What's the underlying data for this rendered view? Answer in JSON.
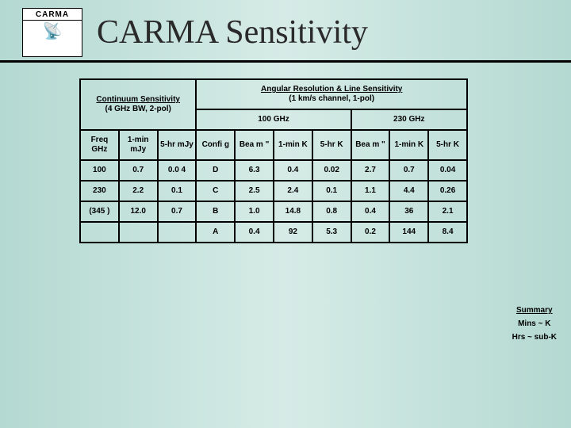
{
  "header": {
    "logo_label": "CARMA",
    "logo_sub": "",
    "title": "CARMA Sensitivity"
  },
  "table": {
    "hdr_continuum": "Continuum Sensitivity",
    "hdr_continuum_sub": "(4 GHz BW, 2-pol)",
    "hdr_angular": "Angular Resolution  & Line Sensitivity",
    "hdr_angular_sub": "(1 km/s channel, 1-pol)",
    "hdr_100": "100 GHz",
    "hdr_230": "230 GHz",
    "cols": {
      "freq": "Freq GHz",
      "min_mjy": "1-min mJy",
      "hr_mjy": "5-hr mJy",
      "config": "Confi g",
      "beam1": "Bea m \"",
      "min_k1": "1-min K",
      "hr_k1": "5-hr K",
      "beam2": "Bea m \"",
      "min_k2": "1-min K",
      "hr_k2": "5-hr K"
    },
    "rows": [
      {
        "freq": "100",
        "min_mjy": "0.7",
        "hr_mjy": "0.0 4",
        "config": "D",
        "beam1": "6.3",
        "min_k1": "0.4",
        "hr_k1": "0.02",
        "beam2": "2.7",
        "min_k2": "0.7",
        "hr_k2": "0.04"
      },
      {
        "freq": "230",
        "min_mjy": "2.2",
        "hr_mjy": "0.1",
        "config": "C",
        "beam1": "2.5",
        "min_k1": "2.4",
        "hr_k1": "0.1",
        "beam2": "1.1",
        "min_k2": "4.4",
        "hr_k2": "0.26"
      },
      {
        "freq": "(345 )",
        "min_mjy": "12.0",
        "hr_mjy": "0.7",
        "config": "B",
        "beam1": "1.0",
        "min_k1": "14.8",
        "hr_k1": "0.8",
        "beam2": "0.4",
        "min_k2": "36",
        "hr_k2": "2.1"
      },
      {
        "freq": "",
        "min_mjy": "",
        "hr_mjy": "",
        "config": "A",
        "beam1": "0.4",
        "min_k1": "92",
        "hr_k1": "5.3",
        "beam2": "0.2",
        "min_k2": "144",
        "hr_k2": "8.4"
      }
    ]
  },
  "sidebar": {
    "summary": "Summary",
    "mins": "Mins ~ K",
    "hrs": "Hrs ~ sub-K"
  }
}
